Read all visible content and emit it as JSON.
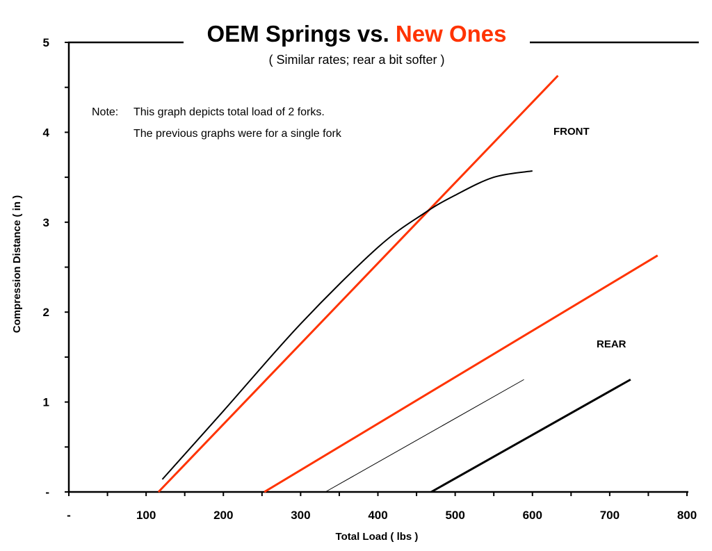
{
  "chart_data": {
    "type": "line",
    "title": "OEM Springs vs.",
    "title_highlight": "New Ones",
    "subtitle": "( Similar rates; rear a bit softer )",
    "xlabel": "Total Load ( lbs )",
    "ylabel": "Compression Distance ( in )",
    "xlim": [
      0,
      800
    ],
    "ylim": [
      0,
      5
    ],
    "x_ticks": [
      "-",
      "100",
      "200",
      "300",
      "400",
      "500",
      "600",
      "700",
      "800"
    ],
    "y_ticks": [
      "-",
      "1",
      "2",
      "3",
      "4",
      "5"
    ],
    "grid": false,
    "note_label": "Note:",
    "note_lines": [
      "This graph depicts total load of 2 forks.",
      "The previous graphs were for a single fork"
    ],
    "annotations": {
      "front": "FRONT",
      "rear": "REAR"
    },
    "colors": {
      "new": "#ff3300",
      "oem": "#000000"
    },
    "series": [
      {
        "name": "Front New",
        "color": "#ff3300",
        "width": 3,
        "x": [
          116,
          633
        ],
        "y": [
          0,
          4.63
        ]
      },
      {
        "name": "Front OEM",
        "color": "#000000",
        "width": 2,
        "curve": true,
        "x": [
          121,
          200,
          300,
          400,
          460,
          500,
          550,
          600
        ],
        "y": [
          0.14,
          0.9,
          1.87,
          2.72,
          3.1,
          3.3,
          3.5,
          3.57
        ]
      },
      {
        "name": "Rear New",
        "color": "#ff3300",
        "width": 3,
        "x": [
          253,
          762
        ],
        "y": [
          0,
          2.63
        ]
      },
      {
        "name": "Rear OEM (thin)",
        "color": "#000000",
        "width": 1,
        "x": [
          332,
          589
        ],
        "y": [
          0,
          1.25
        ]
      },
      {
        "name": "Rear OEM (thick)",
        "color": "#000000",
        "width": 3,
        "x": [
          469,
          727
        ],
        "y": [
          0,
          1.25
        ]
      }
    ]
  }
}
